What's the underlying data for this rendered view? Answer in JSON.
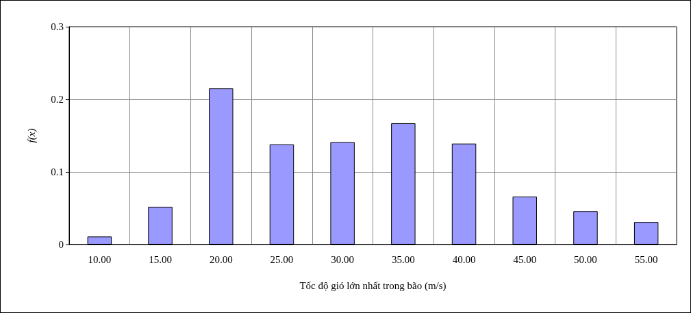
{
  "chart_data": {
    "type": "bar",
    "xlabel": "Tốc độ gió lớn nhất trong bão (m/s)",
    "ylabel": "f(x)",
    "categories": [
      "10.00",
      "15.00",
      "20.00",
      "25.00",
      "30.00",
      "35.00",
      "40.00",
      "45.00",
      "50.00",
      "55.00"
    ],
    "values": [
      0.011,
      0.052,
      0.215,
      0.138,
      0.141,
      0.167,
      0.139,
      0.066,
      0.046,
      0.031
    ],
    "color": "#9999ff",
    "ylim": [
      0,
      0.3
    ],
    "yticks": [
      0,
      0.1,
      0.2,
      0.3
    ],
    "grid": true
  }
}
